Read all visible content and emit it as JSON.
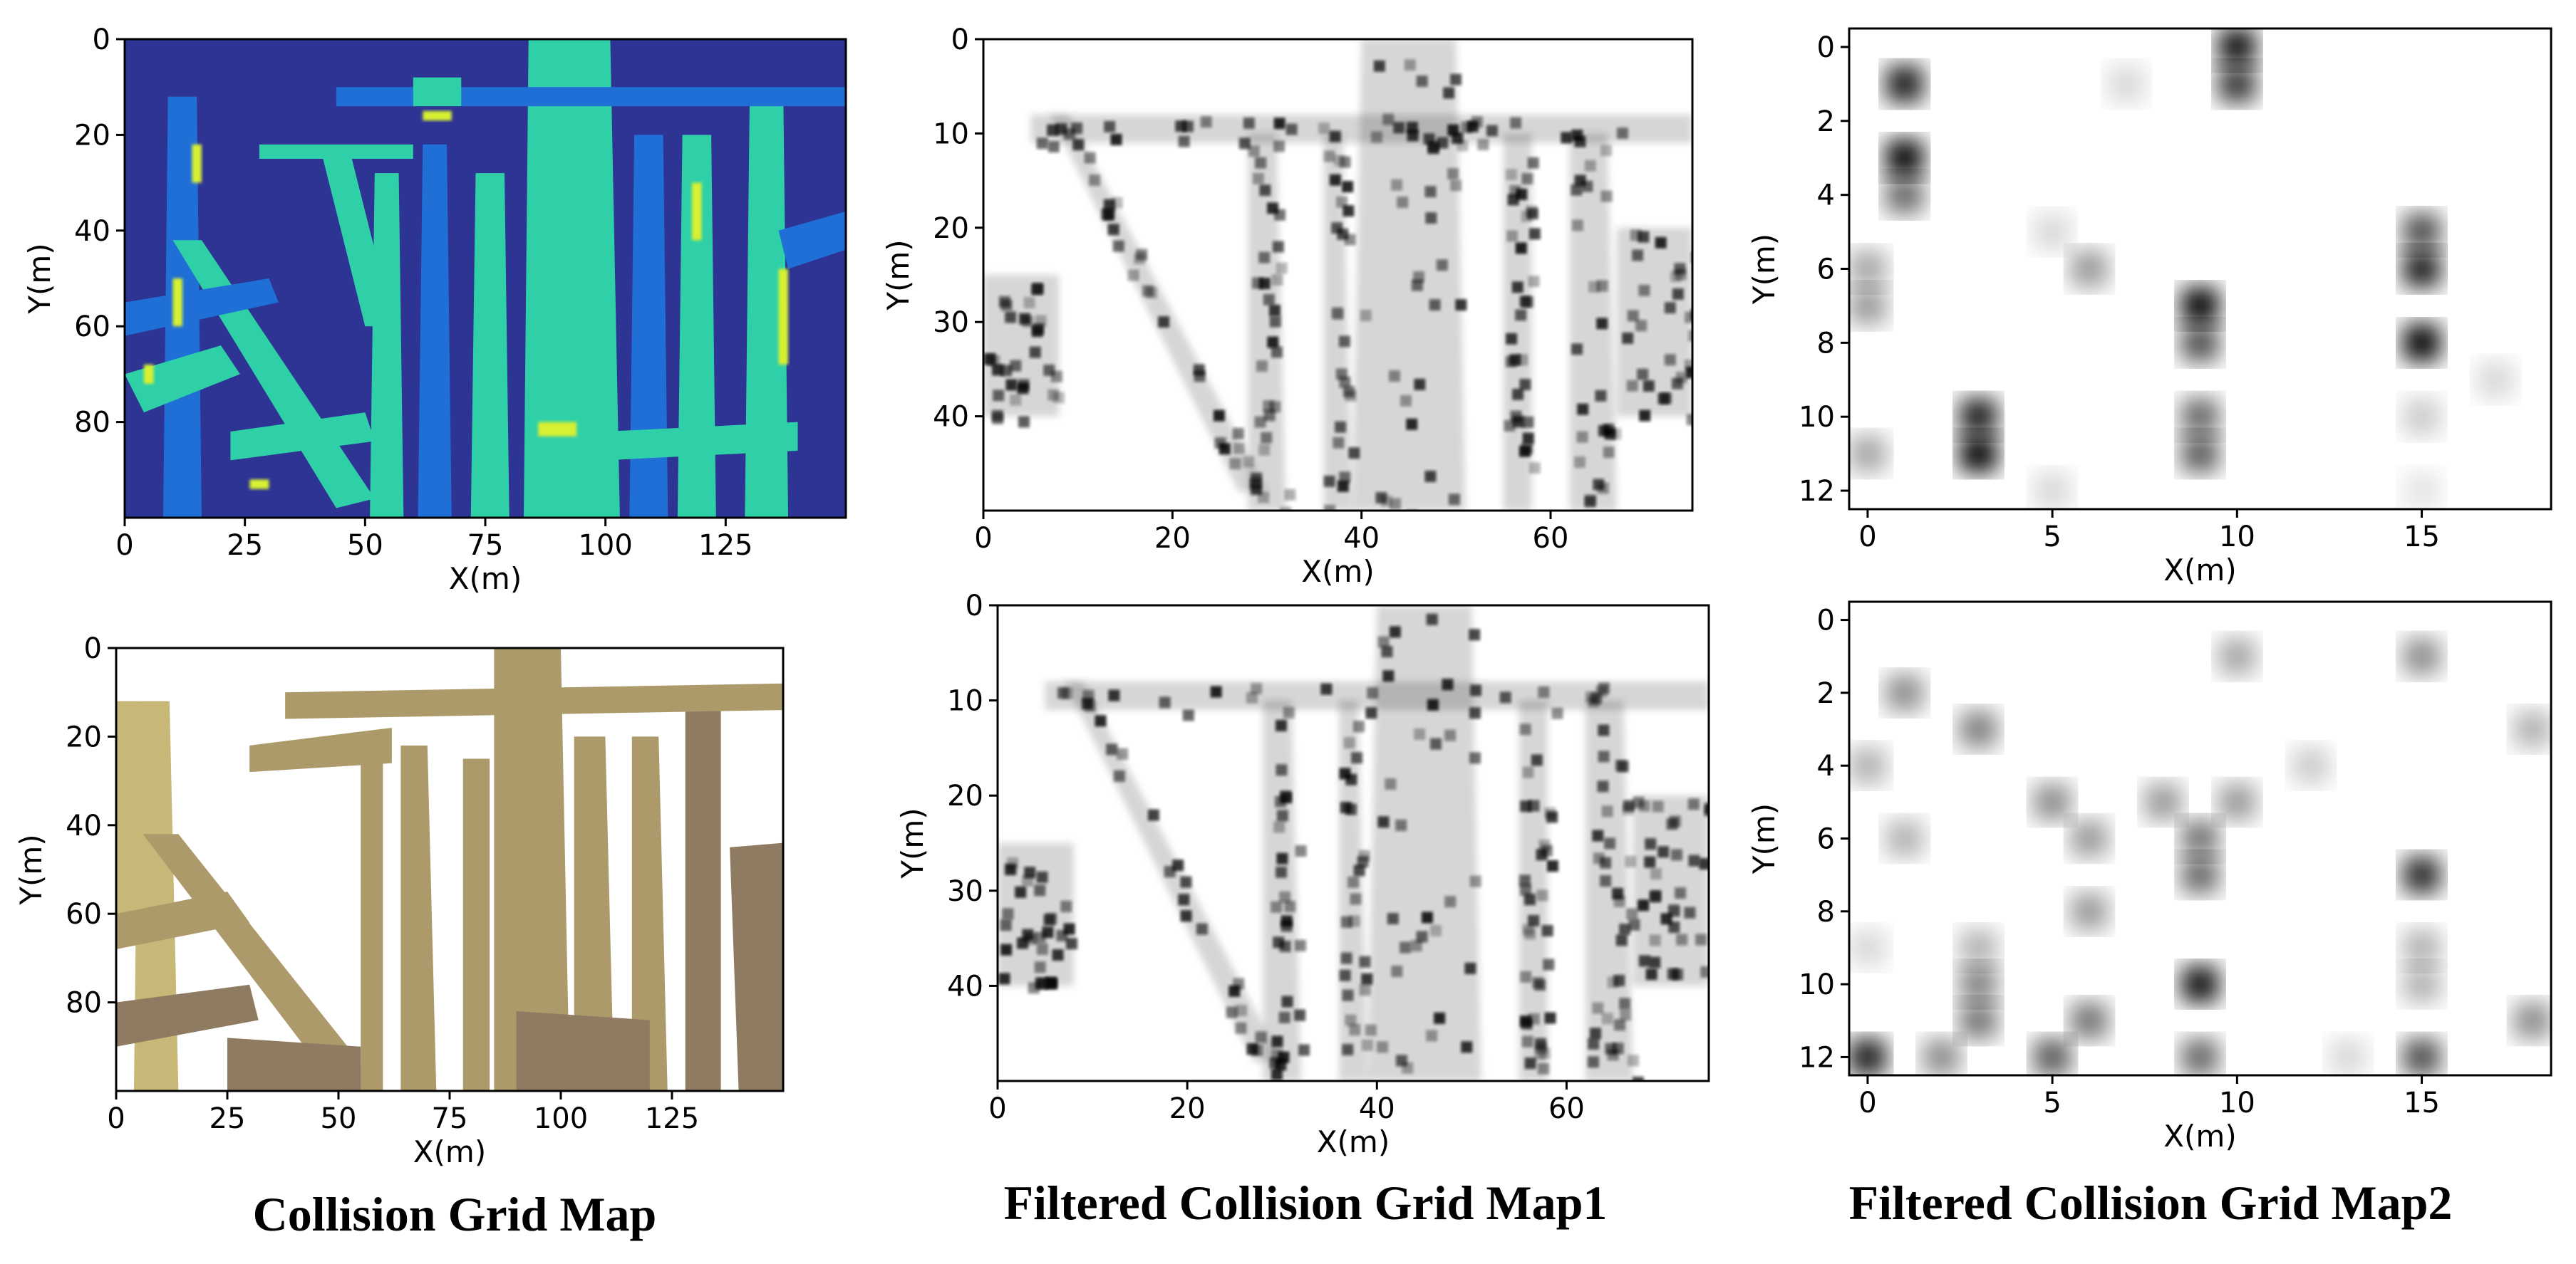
{
  "captions": {
    "col1": "Collision Grid Map",
    "col2": "Filtered Collision Grid Map1",
    "col3": "Filtered Collision Grid Map2"
  },
  "colors": {
    "jet_background": "#2d3494",
    "jet_low": "#1f6fd6",
    "jet_mid": "#2fd0a8",
    "jet_high": "#d8f030",
    "brown_light": "#c8b878",
    "brown_mid": "#ad9a6a",
    "brown_dark": "#8f7a62",
    "gray_ink": "#000000"
  },
  "chart_data": [
    {
      "type": "heatmap",
      "name": "panel-top-left",
      "colormap": "jet",
      "xlabel": "X(m)",
      "ylabel": "Y(m)",
      "xlim": [
        0,
        150
      ],
      "ylim": [
        100,
        0
      ],
      "xticks": [
        "0",
        "25",
        "50",
        "75",
        "100",
        "125"
      ],
      "yticks": [
        "0",
        "20",
        "40",
        "60",
        "80"
      ],
      "xtick_values": [
        0,
        25,
        50,
        75,
        100,
        125
      ],
      "ytick_values": [
        0,
        20,
        40,
        60,
        80
      ]
    },
    {
      "type": "heatmap",
      "name": "panel-top-middle",
      "colormap": "gray_r",
      "xlabel": "X(m)",
      "ylabel": "Y(m)",
      "xlim": [
        0,
        75
      ],
      "ylim": [
        50,
        0
      ],
      "xticks": [
        "0",
        "20",
        "40",
        "60"
      ],
      "yticks": [
        "0",
        "10",
        "20",
        "30",
        "40"
      ],
      "xtick_values": [
        0,
        20,
        40,
        60
      ],
      "ytick_values": [
        0,
        10,
        20,
        30,
        40
      ]
    },
    {
      "type": "heatmap",
      "name": "panel-top-right",
      "colormap": "gray_r",
      "xlabel": "X(m)",
      "ylabel": "Y(m)",
      "xlim": [
        -0.5,
        18.5
      ],
      "ylim": [
        12.5,
        -0.5
      ],
      "xticks": [
        "0",
        "5",
        "10",
        "15"
      ],
      "yticks": [
        "0",
        "2",
        "4",
        "6",
        "8",
        "10",
        "12"
      ],
      "xtick_values": [
        0,
        5,
        10,
        15
      ],
      "ytick_values": [
        0,
        2,
        4,
        6,
        8,
        10,
        12
      ],
      "cells": [
        {
          "x": 1,
          "y": 1,
          "v": 0.9
        },
        {
          "x": 1,
          "y": 3,
          "v": 1.0
        },
        {
          "x": 1,
          "y": 4,
          "v": 0.6
        },
        {
          "x": 10,
          "y": 0,
          "v": 0.95
        },
        {
          "x": 10,
          "y": 1,
          "v": 0.8
        },
        {
          "x": 7,
          "y": 1,
          "v": 0.15
        },
        {
          "x": 0,
          "y": 6,
          "v": 0.35
        },
        {
          "x": 0,
          "y": 7,
          "v": 0.4
        },
        {
          "x": 0,
          "y": 11,
          "v": 0.35
        },
        {
          "x": 5,
          "y": 5,
          "v": 0.15
        },
        {
          "x": 6,
          "y": 6,
          "v": 0.4
        },
        {
          "x": 3,
          "y": 10,
          "v": 0.9
        },
        {
          "x": 3,
          "y": 11,
          "v": 1.0
        },
        {
          "x": 9,
          "y": 7,
          "v": 1.0
        },
        {
          "x": 9,
          "y": 8,
          "v": 0.7
        },
        {
          "x": 9,
          "y": 10,
          "v": 0.6
        },
        {
          "x": 9,
          "y": 11,
          "v": 0.65
        },
        {
          "x": 15,
          "y": 5,
          "v": 0.7
        },
        {
          "x": 15,
          "y": 6,
          "v": 0.9
        },
        {
          "x": 15,
          "y": 8,
          "v": 1.0
        },
        {
          "x": 15,
          "y": 10,
          "v": 0.2
        },
        {
          "x": 15,
          "y": 12,
          "v": 0.1
        },
        {
          "x": 17,
          "y": 9,
          "v": 0.15
        },
        {
          "x": 5,
          "y": 12,
          "v": 0.15
        }
      ]
    },
    {
      "type": "heatmap",
      "name": "panel-bottom-left",
      "colormap": "brown",
      "xlabel": "X(m)",
      "ylabel": "Y(m)",
      "xlim": [
        0,
        150
      ],
      "ylim": [
        100,
        0
      ],
      "xticks": [
        "0",
        "25",
        "50",
        "75",
        "100",
        "125"
      ],
      "yticks": [
        "0",
        "20",
        "40",
        "60",
        "80"
      ],
      "xtick_values": [
        0,
        25,
        50,
        75,
        100,
        125
      ],
      "ytick_values": [
        0,
        20,
        40,
        60,
        80
      ]
    },
    {
      "type": "heatmap",
      "name": "panel-bottom-middle",
      "colormap": "gray_r",
      "xlabel": "X(m)",
      "ylabel": "Y(m)",
      "xlim": [
        0,
        75
      ],
      "ylim": [
        50,
        0
      ],
      "xticks": [
        "0",
        "20",
        "40",
        "60"
      ],
      "yticks": [
        "0",
        "10",
        "20",
        "30",
        "40"
      ],
      "xtick_values": [
        0,
        20,
        40,
        60
      ],
      "ytick_values": [
        0,
        10,
        20,
        30,
        40
      ]
    },
    {
      "type": "heatmap",
      "name": "panel-bottom-right",
      "colormap": "gray_r",
      "xlabel": "X(m)",
      "ylabel": "Y(m)",
      "xlim": [
        -0.5,
        18.5
      ],
      "ylim": [
        12.5,
        -0.5
      ],
      "xticks": [
        "0",
        "5",
        "10",
        "15"
      ],
      "yticks": [
        "0",
        "2",
        "4",
        "6",
        "8",
        "10",
        "12"
      ],
      "xtick_values": [
        0,
        5,
        10,
        15
      ],
      "ytick_values": [
        0,
        2,
        4,
        6,
        8,
        10,
        12
      ],
      "cells": [
        {
          "x": 1,
          "y": 2,
          "v": 0.45
        },
        {
          "x": 3,
          "y": 3,
          "v": 0.5
        },
        {
          "x": 0,
          "y": 4,
          "v": 0.3
        },
        {
          "x": 1,
          "y": 6,
          "v": 0.3
        },
        {
          "x": 5,
          "y": 5,
          "v": 0.45
        },
        {
          "x": 6,
          "y": 6,
          "v": 0.4
        },
        {
          "x": 6,
          "y": 8,
          "v": 0.4
        },
        {
          "x": 8,
          "y": 5,
          "v": 0.4
        },
        {
          "x": 10,
          "y": 5,
          "v": 0.4
        },
        {
          "x": 9,
          "y": 6,
          "v": 0.55
        },
        {
          "x": 9,
          "y": 7,
          "v": 0.6
        },
        {
          "x": 9,
          "y": 10,
          "v": 0.95
        },
        {
          "x": 9,
          "y": 12,
          "v": 0.6
        },
        {
          "x": 10,
          "y": 1,
          "v": 0.35
        },
        {
          "x": 12,
          "y": 4,
          "v": 0.2
        },
        {
          "x": 15,
          "y": 1,
          "v": 0.45
        },
        {
          "x": 15,
          "y": 7,
          "v": 0.85
        },
        {
          "x": 15,
          "y": 9,
          "v": 0.3
        },
        {
          "x": 15,
          "y": 10,
          "v": 0.3
        },
        {
          "x": 15,
          "y": 12,
          "v": 0.7
        },
        {
          "x": 18,
          "y": 3,
          "v": 0.3
        },
        {
          "x": 18,
          "y": 11,
          "v": 0.45
        },
        {
          "x": 0,
          "y": 12,
          "v": 0.9
        },
        {
          "x": 2,
          "y": 12,
          "v": 0.45
        },
        {
          "x": 3,
          "y": 10,
          "v": 0.5
        },
        {
          "x": 3,
          "y": 11,
          "v": 0.55
        },
        {
          "x": 5,
          "y": 12,
          "v": 0.65
        },
        {
          "x": 6,
          "y": 11,
          "v": 0.55
        },
        {
          "x": 0,
          "y": 9,
          "v": 0.15
        },
        {
          "x": 13,
          "y": 12,
          "v": 0.15
        },
        {
          "x": 3,
          "y": 9,
          "v": 0.3
        }
      ]
    }
  ]
}
